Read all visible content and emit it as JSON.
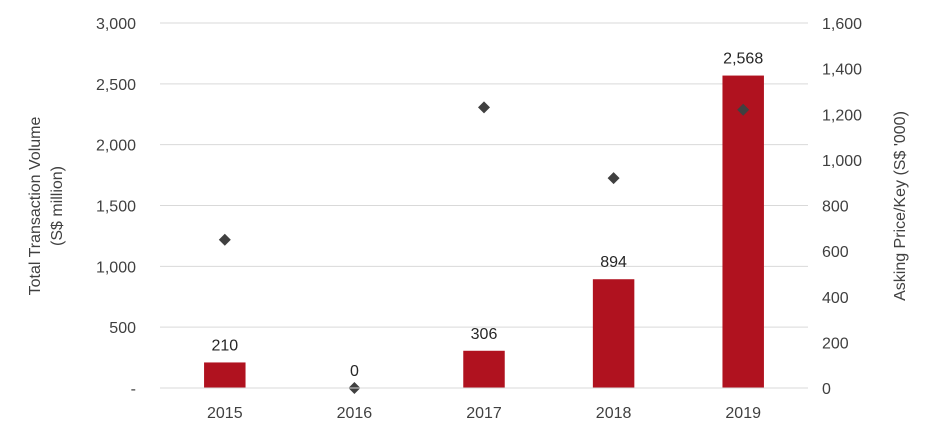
{
  "chart_data": {
    "type": "bar",
    "categories": [
      "2015",
      "2016",
      "2017",
      "2018",
      "2019"
    ],
    "series": [
      {
        "type": "bar",
        "axis": "left",
        "values": [
          210,
          0,
          306,
          894,
          2568
        ],
        "labels": [
          "210",
          "0",
          "306",
          "894",
          "2,568"
        ],
        "color": "#b0121f"
      },
      {
        "type": "scatter",
        "axis": "right",
        "marker": "diamond",
        "values": [
          650,
          0,
          1230,
          920,
          1220
        ],
        "color": "#404040"
      }
    ],
    "y_left": {
      "label_line1": "Total Transaction Volume",
      "label_line2": "(S$ million)",
      "ylim": [
        0,
        3000
      ],
      "ticks": [
        0,
        500,
        1000,
        1500,
        2000,
        2500,
        3000
      ],
      "tick_labels": [
        "-",
        "500",
        "1,000",
        "1,500",
        "2,000",
        "2,500",
        "3,000"
      ]
    },
    "y_right": {
      "label": "Asking Price/Key (S$ '000)",
      "ylim": [
        0,
        1600
      ],
      "ticks": [
        0,
        200,
        400,
        600,
        800,
        1000,
        1200,
        1400,
        1600
      ],
      "tick_labels": [
        "0",
        "200",
        "400",
        "600",
        "800",
        "1,000",
        "1,200",
        "1,400",
        "1,600"
      ]
    },
    "grid": true,
    "legend": "none"
  }
}
